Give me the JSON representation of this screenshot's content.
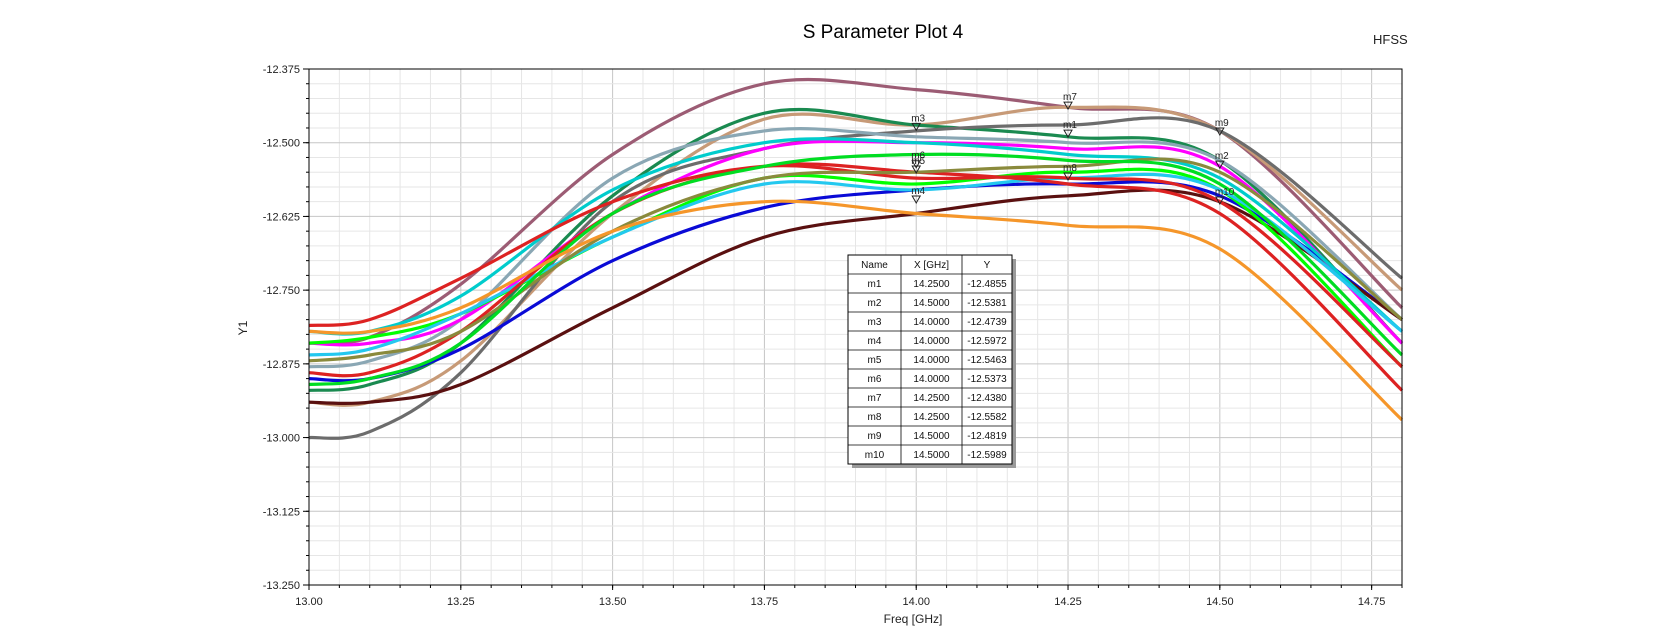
{
  "chart_data": {
    "type": "line",
    "title": "S Parameter Plot 4",
    "brand": "HFSS",
    "xlabel": "Freq [GHz]",
    "ylabel": "Y1",
    "xlim": [
      13.0,
      14.8
    ],
    "ylim": [
      -13.25,
      -12.375
    ],
    "x_ticks": [
      "13.00",
      "13.25",
      "13.50",
      "13.75",
      "14.00",
      "14.25",
      "14.50",
      "14.75"
    ],
    "y_ticks": [
      "-12.375",
      "-12.500",
      "-12.625",
      "-12.750",
      "-12.875",
      "-13.000",
      "-13.125",
      "-13.250"
    ],
    "grid": true,
    "x": [
      13.0,
      13.1,
      13.25,
      13.5,
      13.75,
      14.0,
      14.25,
      14.5,
      14.8
    ],
    "series": [
      {
        "color": "#9c5c74",
        "values": [
          -12.84,
          -12.83,
          -12.74,
          -12.52,
          -12.4,
          -12.41,
          -12.44,
          -12.48,
          -12.78
        ]
      },
      {
        "color": "#c79a77",
        "values": [
          -12.94,
          -12.94,
          -12.87,
          -12.62,
          -12.46,
          -12.47,
          -12.44,
          -12.48,
          -12.75
        ]
      },
      {
        "color": "#1a8a50",
        "values": [
          -12.92,
          -12.91,
          -12.84,
          -12.59,
          -12.45,
          -12.47,
          -12.49,
          -12.53,
          -12.84
        ]
      },
      {
        "color": "#6c6c6c",
        "values": [
          -13.0,
          -12.99,
          -12.89,
          -12.6,
          -12.51,
          -12.48,
          -12.47,
          -12.48,
          -12.73
        ]
      },
      {
        "color": "#8aa7b4",
        "values": [
          -12.88,
          -12.87,
          -12.8,
          -12.56,
          -12.48,
          -12.49,
          -12.5,
          -12.53,
          -12.8
        ]
      },
      {
        "color": "#0a0ad6",
        "values": [
          -12.9,
          -12.9,
          -12.85,
          -12.7,
          -12.61,
          -12.58,
          -12.57,
          -12.59,
          -12.8
        ]
      },
      {
        "color": "#5a1010",
        "values": [
          -12.94,
          -12.94,
          -12.91,
          -12.78,
          -12.66,
          -12.62,
          -12.59,
          -12.6,
          -12.8
        ]
      },
      {
        "color": "#ff00ff",
        "values": [
          -12.84,
          -12.84,
          -12.8,
          -12.62,
          -12.51,
          -12.5,
          -12.51,
          -12.54,
          -12.84
        ]
      },
      {
        "color": "#00ff00",
        "values": [
          -12.84,
          -12.83,
          -12.79,
          -12.66,
          -12.56,
          -12.57,
          -12.55,
          -12.58,
          -12.88
        ]
      },
      {
        "color": "#00cccc",
        "values": [
          -12.82,
          -12.82,
          -12.76,
          -12.58,
          -12.5,
          -12.5,
          -12.52,
          -12.56,
          -12.82
        ]
      },
      {
        "color": "#23c8ef",
        "values": [
          -12.86,
          -12.85,
          -12.79,
          -12.66,
          -12.57,
          -12.58,
          -12.56,
          -12.58,
          -12.82
        ]
      },
      {
        "color": "#dd2222",
        "values": [
          -12.81,
          -12.8,
          -12.73,
          -12.6,
          -12.54,
          -12.56,
          -12.56,
          -12.6,
          -12.88
        ]
      },
      {
        "color": "#dd2222",
        "values": [
          -12.89,
          -12.89,
          -12.82,
          -12.62,
          -12.54,
          -12.55,
          -12.57,
          -12.62,
          -12.92
        ]
      },
      {
        "color": "#8a8a3c",
        "values": [
          -12.87,
          -12.86,
          -12.82,
          -12.65,
          -12.56,
          -12.55,
          -12.54,
          -12.55,
          -12.8
        ]
      },
      {
        "color": "#00dd22",
        "values": [
          -12.91,
          -12.9,
          -12.84,
          -12.62,
          -12.54,
          -12.52,
          -12.53,
          -12.57,
          -12.86
        ]
      },
      {
        "color": "#f5962a",
        "values": [
          -12.82,
          -12.82,
          -12.78,
          -12.65,
          -12.6,
          -12.62,
          -12.64,
          -12.68,
          -12.97
        ]
      }
    ],
    "markers": [
      {
        "name": "m1",
        "x": 14.25,
        "y": -12.4855
      },
      {
        "name": "m2",
        "x": 14.5,
        "y": -12.5381
      },
      {
        "name": "m3",
        "x": 14.0,
        "y": -12.4739
      },
      {
        "name": "m4",
        "x": 14.0,
        "y": -12.5972
      },
      {
        "name": "m5",
        "x": 14.0,
        "y": -12.5463
      },
      {
        "name": "m6",
        "x": 14.0,
        "y": -12.5373
      },
      {
        "name": "m7",
        "x": 14.25,
        "y": -12.438
      },
      {
        "name": "m8",
        "x": 14.25,
        "y": -12.5582
      },
      {
        "name": "m9",
        "x": 14.5,
        "y": -12.4819
      },
      {
        "name": "m10",
        "x": 14.5,
        "y": -12.5989
      }
    ],
    "marker_table": {
      "headers": [
        "Name",
        "X [GHz]",
        "Y"
      ],
      "rows": [
        [
          "m1",
          "14.2500",
          "-12.4855"
        ],
        [
          "m2",
          "14.5000",
          "-12.5381"
        ],
        [
          "m3",
          "14.0000",
          "-12.4739"
        ],
        [
          "m4",
          "14.0000",
          "-12.5972"
        ],
        [
          "m5",
          "14.0000",
          "-12.5463"
        ],
        [
          "m6",
          "14.0000",
          "-12.5373"
        ],
        [
          "m7",
          "14.2500",
          "-12.4380"
        ],
        [
          "m8",
          "14.2500",
          "-12.5582"
        ],
        [
          "m9",
          "14.5000",
          "-12.4819"
        ],
        [
          "m10",
          "14.5000",
          "-12.5989"
        ]
      ]
    }
  }
}
